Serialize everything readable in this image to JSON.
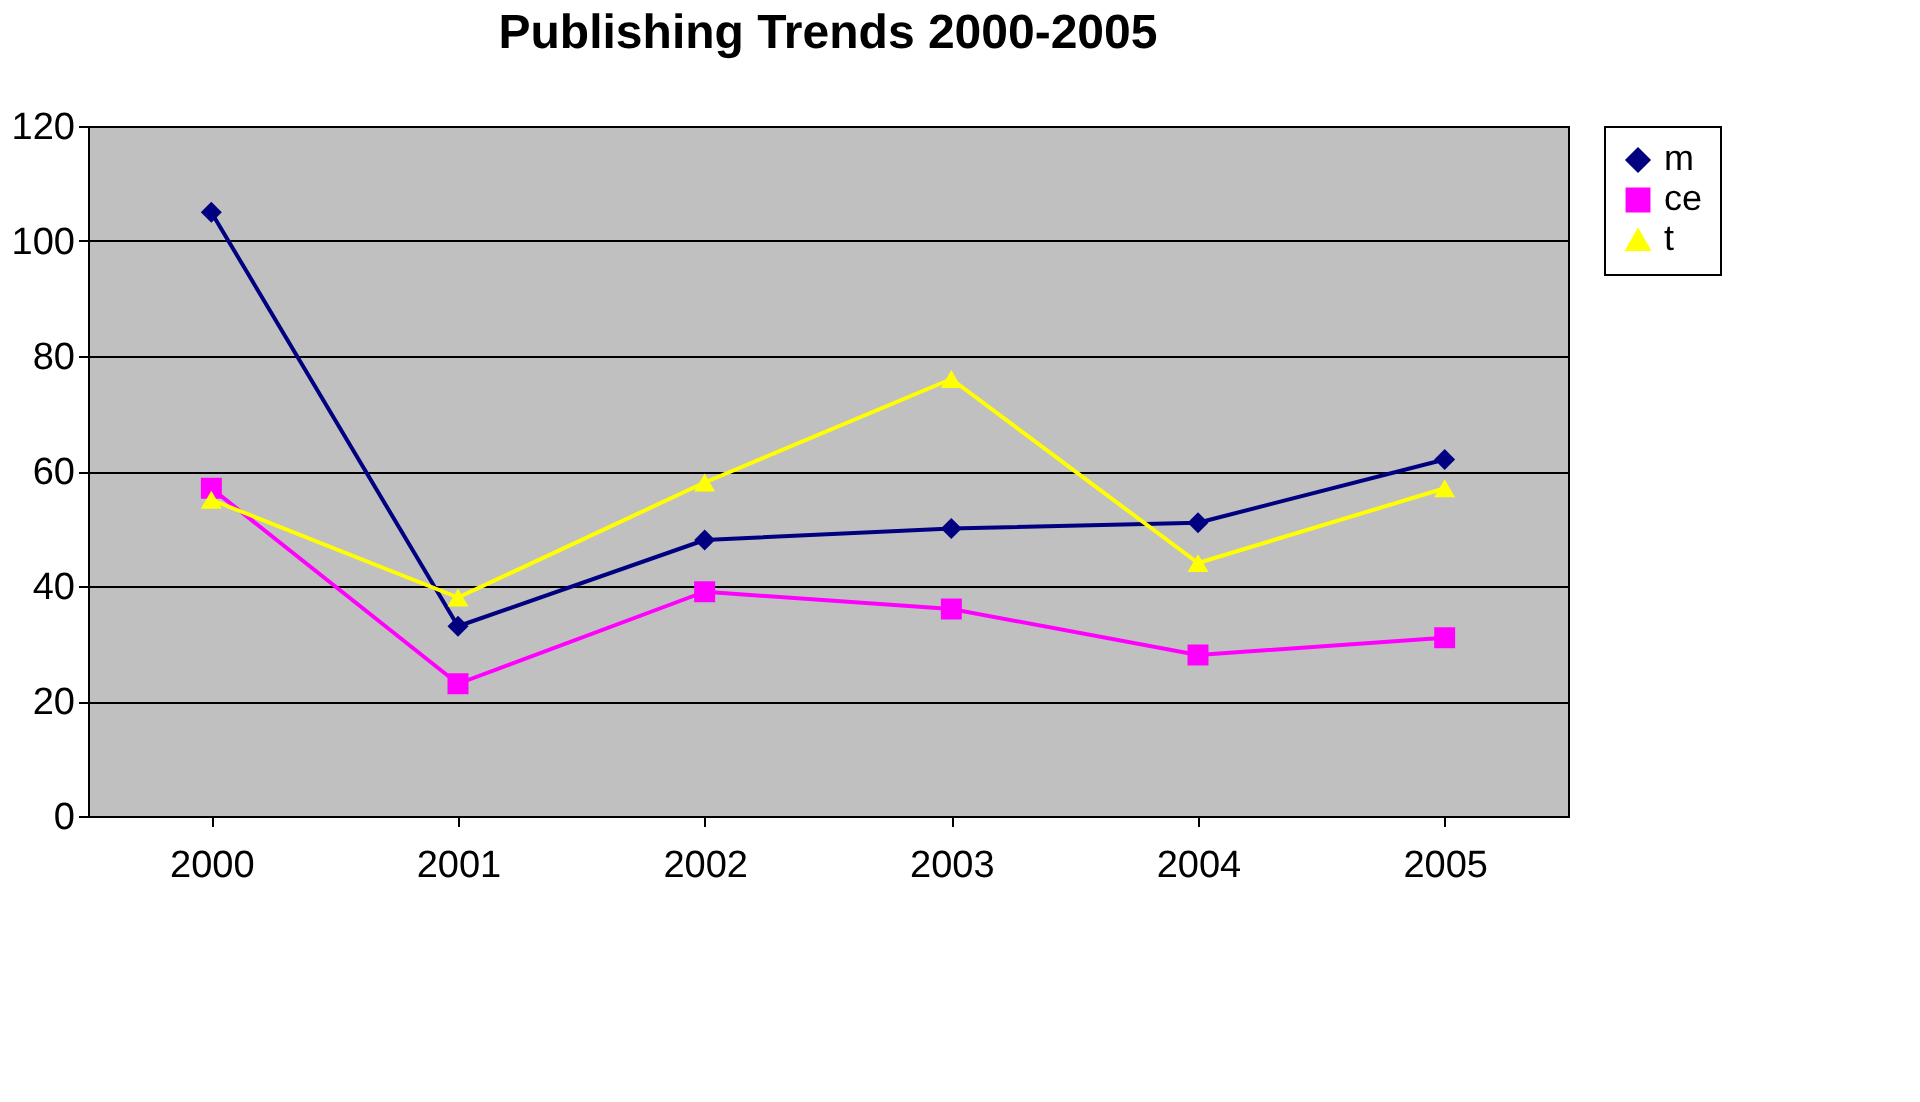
{
  "chart_data": {
    "type": "line",
    "title": "Publishing Trends 2000-2005",
    "categories": [
      "2000",
      "2001",
      "2002",
      "2003",
      "2004",
      "2005"
    ],
    "series": [
      {
        "name": "m",
        "color": "#000080",
        "marker": "diamond",
        "values": [
          105,
          33,
          48,
          50,
          51,
          62
        ]
      },
      {
        "name": "ce",
        "color": "#ff00ff",
        "marker": "square",
        "values": [
          57,
          23,
          39,
          36,
          28,
          31
        ]
      },
      {
        "name": "t",
        "color": "#ffff00",
        "marker": "triangle",
        "values": [
          55,
          38,
          58,
          76,
          44,
          57
        ]
      }
    ],
    "ylim": [
      0,
      120
    ],
    "yticks": [
      0,
      20,
      40,
      60,
      80,
      100,
      120
    ],
    "grid": "y",
    "legend": "right",
    "line_style": "solid"
  }
}
